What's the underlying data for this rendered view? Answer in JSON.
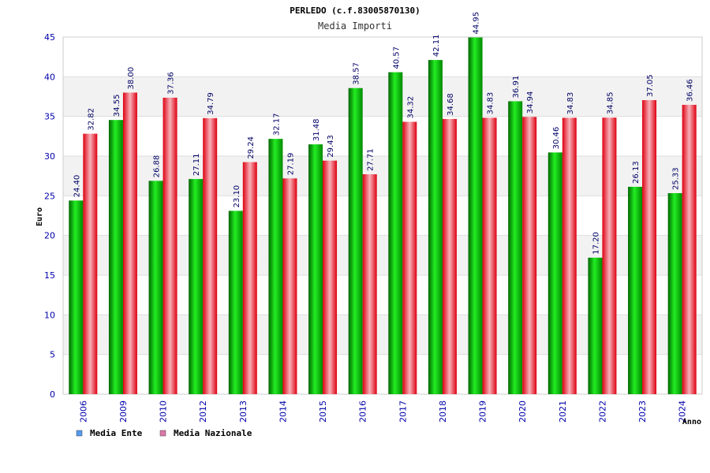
{
  "chart_data": {
    "type": "bar",
    "title": "PERLEDO (c.f.83005870130)",
    "subtitle": "Media Importi",
    "xlabel": "Anno",
    "ylabel": "Euro",
    "ylim": [
      0,
      45
    ],
    "yticks": [
      "0",
      "5",
      "10",
      "15",
      "20",
      "25",
      "30",
      "35",
      "40",
      "45"
    ],
    "grid": true,
    "legend_position": "bottom-left",
    "categories": [
      "2006",
      "2009",
      "2010",
      "2012",
      "2013",
      "2014",
      "2015",
      "2016",
      "2017",
      "2018",
      "2019",
      "2020",
      "2021",
      "2022",
      "2023",
      "2024"
    ],
    "series": [
      {
        "name": "Media Ente",
        "color": "#00b000",
        "legend_color": "#5599ee",
        "values": [
          24.4,
          34.55,
          26.88,
          27.11,
          23.1,
          32.17,
          31.48,
          38.57,
          40.57,
          42.11,
          44.95,
          36.91,
          30.46,
          17.2,
          26.13,
          25.33
        ],
        "labels": [
          "24.40",
          "34.55",
          "26.88",
          "27.11",
          "23.10",
          "32.17",
          "31.48",
          "38.57",
          "40.57",
          "42.11",
          "44.95",
          "36.91",
          "30.46",
          "17.20",
          "26.13",
          "25.33"
        ]
      },
      {
        "name": "Media Nazionale",
        "color": "#e8102a",
        "legend_color": "#dd77aa",
        "values": [
          32.82,
          38.0,
          37.36,
          34.79,
          29.24,
          27.19,
          29.43,
          27.71,
          34.32,
          34.68,
          34.83,
          34.94,
          34.83,
          34.85,
          37.05,
          36.46
        ],
        "labels": [
          "32.82",
          "38.00",
          "37.36",
          "34.79",
          "29.24",
          "27.19",
          "29.43",
          "27.71",
          "34.32",
          "34.68",
          "34.83",
          "34.94",
          "34.83",
          "34.85",
          "37.05",
          "36.46"
        ]
      }
    ]
  }
}
